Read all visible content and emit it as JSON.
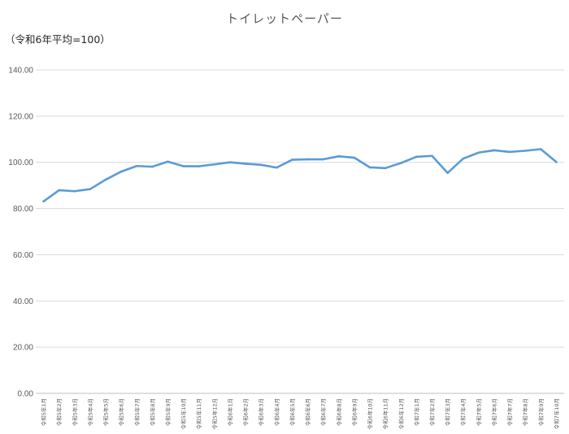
{
  "colors": {
    "series": "#5b9bd5",
    "grid": "#d9d9d9",
    "text": "#595959"
  },
  "chart_data": {
    "type": "line",
    "title": "トイレットペーパー",
    "subtitle": "（令和6年平均=100）",
    "ylim": [
      0,
      140
    ],
    "yticks": [
      "0.00",
      "20.00",
      "40.00",
      "60.00",
      "80.00",
      "100.00",
      "120.00",
      "140.00"
    ],
    "grid": true,
    "legend": "none",
    "categories": [
      "令和5年1月",
      "令和5年2月",
      "令和5年3月",
      "令和5年4月",
      "令和5年5月",
      "令和5年6月",
      "令和5年7月",
      "令和5年8月",
      "令和5年9月",
      "令和5年10月",
      "令和5年11月",
      "令和5年12月",
      "令和6年1月",
      "令和6年2月",
      "令和6年3月",
      "令和6年4月",
      "令和6年5月",
      "令和6年6月",
      "令和6年7月",
      "令和6年8月",
      "令和6年9月",
      "令和6年10月",
      "令和6年11月",
      "令和6年12月",
      "令和7年1月",
      "令和7年2月",
      "令和7年3月",
      "令和7年4月",
      "令和7年5月",
      "令和7年6月",
      "令和7年7月",
      "令和7年8月",
      "令和7年9月",
      "令和7年10月"
    ],
    "series": [
      {
        "values": [
          83.1,
          87.9,
          87.5,
          88.4,
          92.5,
          96.0,
          98.4,
          98.1,
          100.3,
          98.3,
          98.3,
          99.1,
          100.0,
          99.4,
          98.9,
          97.7,
          101.1,
          101.3,
          101.3,
          102.6,
          102.0,
          97.8,
          97.5,
          99.7,
          102.4,
          102.8,
          95.4,
          101.6,
          104.2,
          105.2,
          104.5,
          105.0,
          105.7,
          100.1
        ]
      }
    ]
  }
}
